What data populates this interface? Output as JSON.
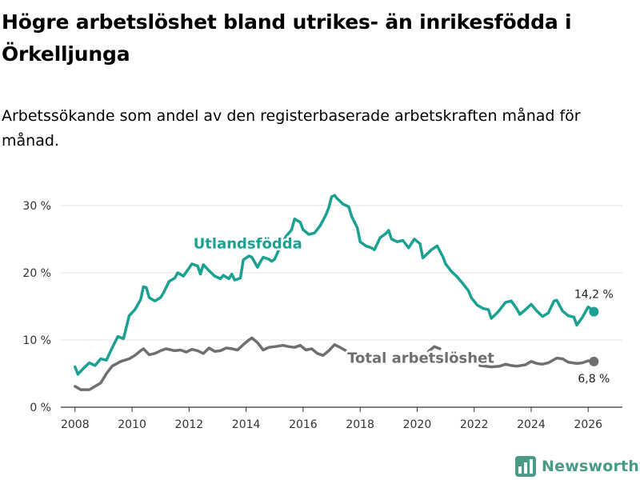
{
  "title": "Högre arbetslöshet bland utrikes- än inrikesfödda i Örkelljunga",
  "subtitle": "Arbetssökande som andel av den registerbaserade arbetskraften månad för månad.",
  "brand": "Newsworthy",
  "colors": {
    "foreign": "#1aa192",
    "total": "#6f6f71",
    "grid": "#e3e3e3",
    "axis": "#333333",
    "brand": "#4a9a88"
  },
  "chart_data": {
    "type": "line",
    "title": "Högre arbetslöshet bland utrikes- än inrikesfödda i Örkelljunga",
    "xlabel": "",
    "ylabel": "",
    "xlim": [
      2007.5,
      2027.2
    ],
    "ylim": [
      0,
      32
    ],
    "x_ticks": [
      2008,
      2010,
      2012,
      2014,
      2016,
      2018,
      2020,
      2022,
      2024,
      2026
    ],
    "x_tick_labels": [
      "2008",
      "2010",
      "2012",
      "2014",
      "2016",
      "2018",
      "2020",
      "2022",
      "2024",
      "2026"
    ],
    "y_ticks": [
      0,
      10,
      20,
      30
    ],
    "y_tick_labels": [
      "0 %",
      "10 %",
      "20 %",
      "30 %"
    ],
    "grid": "horizontal",
    "series": [
      {
        "name": "Utlandsfödda",
        "label": "Utlandsfödda",
        "end_label": "14,2 %",
        "points": [
          [
            2008.0,
            6.0
          ],
          [
            2008.1,
            4.9
          ],
          [
            2008.3,
            5.8
          ],
          [
            2008.5,
            6.6
          ],
          [
            2008.7,
            6.2
          ],
          [
            2008.9,
            7.2
          ],
          [
            2009.1,
            7.0
          ],
          [
            2009.3,
            8.8
          ],
          [
            2009.5,
            10.5
          ],
          [
            2009.7,
            10.2
          ],
          [
            2009.9,
            13.6
          ],
          [
            2010.1,
            14.5
          ],
          [
            2010.3,
            16.0
          ],
          [
            2010.4,
            17.9
          ],
          [
            2010.5,
            17.8
          ],
          [
            2010.6,
            16.3
          ],
          [
            2010.8,
            15.8
          ],
          [
            2011.0,
            16.3
          ],
          [
            2011.1,
            17.0
          ],
          [
            2011.3,
            18.7
          ],
          [
            2011.5,
            19.2
          ],
          [
            2011.6,
            20.0
          ],
          [
            2011.8,
            19.5
          ],
          [
            2012.0,
            20.7
          ],
          [
            2012.1,
            21.3
          ],
          [
            2012.3,
            21.0
          ],
          [
            2012.4,
            19.8
          ],
          [
            2012.5,
            21.2
          ],
          [
            2012.7,
            20.3
          ],
          [
            2012.9,
            19.5
          ],
          [
            2013.1,
            19.1
          ],
          [
            2013.2,
            19.6
          ],
          [
            2013.4,
            19.1
          ],
          [
            2013.5,
            19.8
          ],
          [
            2013.6,
            18.9
          ],
          [
            2013.8,
            19.2
          ],
          [
            2013.9,
            21.9
          ],
          [
            2014.0,
            22.2
          ],
          [
            2014.1,
            22.5
          ],
          [
            2014.2,
            22.3
          ],
          [
            2014.4,
            20.8
          ],
          [
            2014.5,
            21.6
          ],
          [
            2014.6,
            22.3
          ],
          [
            2014.8,
            22.0
          ],
          [
            2014.9,
            21.7
          ],
          [
            2015.0,
            22.0
          ],
          [
            2015.2,
            23.9
          ],
          [
            2015.4,
            25.4
          ],
          [
            2015.6,
            26.4
          ],
          [
            2015.7,
            28.0
          ],
          [
            2015.9,
            27.5
          ],
          [
            2016.0,
            26.4
          ],
          [
            2016.2,
            25.7
          ],
          [
            2016.4,
            25.9
          ],
          [
            2016.6,
            27.0
          ],
          [
            2016.8,
            28.6
          ],
          [
            2016.9,
            29.7
          ],
          [
            2017.0,
            31.3
          ],
          [
            2017.1,
            31.5
          ],
          [
            2017.2,
            31.0
          ],
          [
            2017.4,
            30.2
          ],
          [
            2017.6,
            29.8
          ],
          [
            2017.7,
            28.4
          ],
          [
            2017.9,
            26.7
          ],
          [
            2018.0,
            24.6
          ],
          [
            2018.2,
            24.0
          ],
          [
            2018.4,
            23.7
          ],
          [
            2018.5,
            23.4
          ],
          [
            2018.7,
            25.2
          ],
          [
            2018.9,
            25.8
          ],
          [
            2019.0,
            26.3
          ],
          [
            2019.1,
            25.0
          ],
          [
            2019.3,
            24.6
          ],
          [
            2019.5,
            24.8
          ],
          [
            2019.7,
            23.7
          ],
          [
            2019.9,
            25.0
          ],
          [
            2020.1,
            24.3
          ],
          [
            2020.2,
            22.2
          ],
          [
            2020.4,
            23.0
          ],
          [
            2020.5,
            23.4
          ],
          [
            2020.7,
            24.0
          ],
          [
            2020.9,
            22.4
          ],
          [
            2021.0,
            21.3
          ],
          [
            2021.2,
            20.2
          ],
          [
            2021.4,
            19.4
          ],
          [
            2021.6,
            18.4
          ],
          [
            2021.8,
            17.3
          ],
          [
            2021.9,
            16.3
          ],
          [
            2022.1,
            15.2
          ],
          [
            2022.3,
            14.7
          ],
          [
            2022.5,
            14.5
          ],
          [
            2022.6,
            13.2
          ],
          [
            2022.8,
            14.0
          ],
          [
            2022.9,
            14.5
          ],
          [
            2023.1,
            15.6
          ],
          [
            2023.3,
            15.8
          ],
          [
            2023.5,
            14.6
          ],
          [
            2023.6,
            13.8
          ],
          [
            2023.8,
            14.5
          ],
          [
            2024.0,
            15.3
          ],
          [
            2024.2,
            14.3
          ],
          [
            2024.4,
            13.5
          ],
          [
            2024.6,
            14.0
          ],
          [
            2024.8,
            15.8
          ],
          [
            2024.9,
            15.9
          ],
          [
            2025.1,
            14.3
          ],
          [
            2025.3,
            13.6
          ],
          [
            2025.5,
            13.4
          ],
          [
            2025.6,
            12.2
          ],
          [
            2025.8,
            13.4
          ],
          [
            2026.0,
            14.9
          ],
          [
            2026.1,
            14.6
          ],
          [
            2026.2,
            14.2
          ]
        ]
      },
      {
        "name": "Total arbetslöshet",
        "label": "Total arbetslöshet",
        "end_label": "6,8 %",
        "points": [
          [
            2008.0,
            3.1
          ],
          [
            2008.2,
            2.6
          ],
          [
            2008.5,
            2.6
          ],
          [
            2008.7,
            3.1
          ],
          [
            2008.9,
            3.6
          ],
          [
            2009.1,
            5.0
          ],
          [
            2009.3,
            6.1
          ],
          [
            2009.6,
            6.8
          ],
          [
            2009.9,
            7.2
          ],
          [
            2010.1,
            7.7
          ],
          [
            2010.3,
            8.4
          ],
          [
            2010.4,
            8.7
          ],
          [
            2010.6,
            7.8
          ],
          [
            2010.8,
            8.0
          ],
          [
            2011.0,
            8.4
          ],
          [
            2011.2,
            8.7
          ],
          [
            2011.5,
            8.4
          ],
          [
            2011.7,
            8.5
          ],
          [
            2011.9,
            8.2
          ],
          [
            2012.1,
            8.6
          ],
          [
            2012.3,
            8.4
          ],
          [
            2012.5,
            8.0
          ],
          [
            2012.7,
            8.8
          ],
          [
            2012.9,
            8.3
          ],
          [
            2013.1,
            8.4
          ],
          [
            2013.3,
            8.8
          ],
          [
            2013.5,
            8.7
          ],
          [
            2013.7,
            8.5
          ],
          [
            2013.9,
            9.3
          ],
          [
            2014.1,
            10.0
          ],
          [
            2014.2,
            10.3
          ],
          [
            2014.4,
            9.6
          ],
          [
            2014.6,
            8.5
          ],
          [
            2014.8,
            8.9
          ],
          [
            2015.0,
            9.0
          ],
          [
            2015.3,
            9.2
          ],
          [
            2015.5,
            9.0
          ],
          [
            2015.7,
            8.9
          ],
          [
            2015.9,
            9.2
          ],
          [
            2016.1,
            8.5
          ],
          [
            2016.3,
            8.7
          ],
          [
            2016.5,
            8.0
          ],
          [
            2016.7,
            7.7
          ],
          [
            2016.9,
            8.4
          ],
          [
            2017.1,
            9.3
          ],
          [
            2017.3,
            8.9
          ],
          [
            2017.5,
            8.4
          ],
          [
            2020.4,
            8.3
          ],
          [
            2020.6,
            9.0
          ],
          [
            2020.8,
            8.7
          ],
          [
            2022.2,
            6.2
          ],
          [
            2022.4,
            6.1
          ],
          [
            2022.6,
            6.0
          ],
          [
            2022.9,
            6.1
          ],
          [
            2023.1,
            6.4
          ],
          [
            2023.3,
            6.2
          ],
          [
            2023.5,
            6.1
          ],
          [
            2023.8,
            6.3
          ],
          [
            2024.0,
            6.8
          ],
          [
            2024.2,
            6.5
          ],
          [
            2024.4,
            6.4
          ],
          [
            2024.6,
            6.6
          ],
          [
            2024.9,
            7.3
          ],
          [
            2025.1,
            7.2
          ],
          [
            2025.3,
            6.7
          ],
          [
            2025.6,
            6.5
          ],
          [
            2025.8,
            6.6
          ],
          [
            2026.0,
            6.9
          ],
          [
            2026.2,
            6.8
          ]
        ]
      }
    ]
  }
}
